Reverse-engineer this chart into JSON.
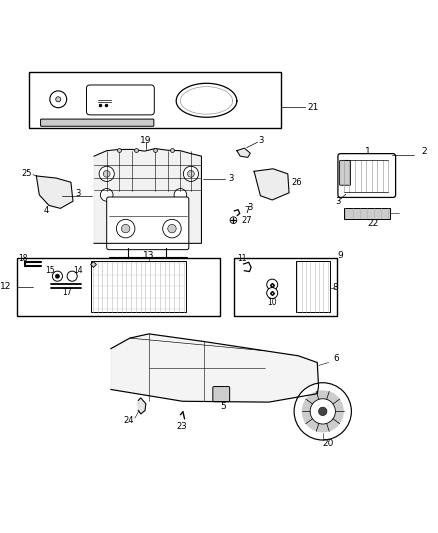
{
  "bg_color": "#ffffff",
  "line_color": "#000000",
  "light_gray": "#cccccc",
  "mid_gray": "#999999",
  "dark_gray": "#444444"
}
